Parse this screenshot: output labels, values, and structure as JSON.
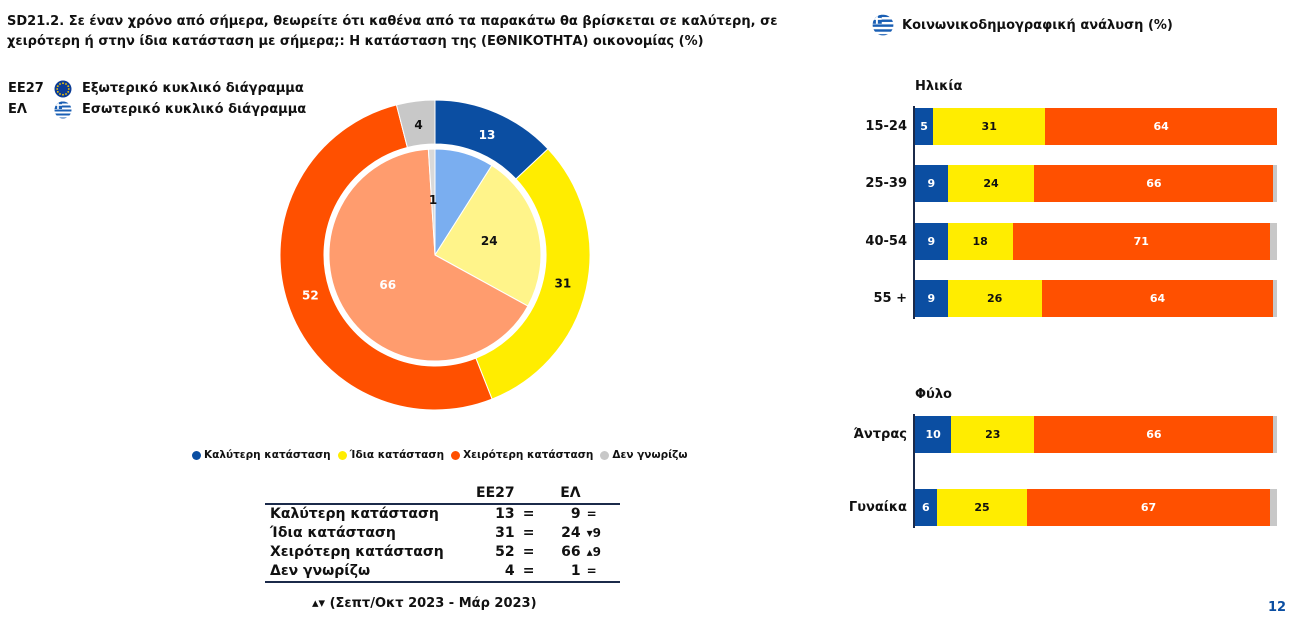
{
  "title": "SD21.2. Σε έναν χρόνο από σήμερα, θεωρείτε ότι καθένα από τα παρακάτω θα βρίσκεται σε καλύτερη, σε χειρότερη ή στην ίδια κατάσταση με σήμερα;: Η κατάσταση της (ΕΘΝΙΚΟΤΗΤΑ) οικονομίας (%)",
  "legend_top": [
    {
      "code": "EE27",
      "label": "Εξωτερικό κυκλικό διάγραμμα",
      "icon": "eu-flag-icon"
    },
    {
      "code": "ΕΛ",
      "label": "Εσωτερικό κυκλικό διάγραμμα",
      "icon": "greece-flag-icon"
    }
  ],
  "right_title": "Κοινωνικοδημογραφική ανάλυση (%)",
  "colors": {
    "better": "#0b4ea2",
    "same": "#ffed00",
    "worse": "#ff5000",
    "dk": "#c8c8c8",
    "better_inner": "#7aaef0",
    "same_inner": "#fff48a",
    "worse_inner": "#ff9c6e",
    "dk_inner": "#d9d9d9"
  },
  "chart_data": [
    {
      "type": "pie",
      "variant": "double-donut",
      "categories": [
        "Καλύτερη κατάσταση",
        "Ίδια κατάσταση",
        "Χειρότερη κατάσταση",
        "Δεν γνωρίζω"
      ],
      "series": [
        {
          "name": "EE27",
          "ring": "outer",
          "values": [
            13,
            31,
            52,
            4
          ]
        },
        {
          "name": "ΕΛ",
          "ring": "inner",
          "values": [
            9,
            24,
            66,
            1
          ]
        }
      ],
      "legend": "bottom"
    },
    {
      "type": "bar",
      "orientation": "horizontal",
      "stacked": true,
      "groups": [
        {
          "label": "Ηλικία",
          "categories": [
            "15-24",
            "25-39",
            "40-54",
            "55 +"
          ],
          "values": [
            [
              5,
              31,
              64,
              0
            ],
            [
              9,
              24,
              66,
              1
            ],
            [
              9,
              18,
              71,
              2
            ],
            [
              9,
              26,
              64,
              1
            ]
          ]
        },
        {
          "label": "Φύλο",
          "categories": [
            "Άντρας",
            "Γυναίκα"
          ],
          "values": [
            [
              10,
              23,
              66,
              1
            ],
            [
              6,
              25,
              67,
              2
            ]
          ]
        }
      ],
      "series_order": [
        "Καλύτερη κατάσταση",
        "Ίδια κατάσταση",
        "Χειρότερη κατάσταση",
        "Δεν γνωρίζω"
      ]
    }
  ],
  "table": {
    "headers": [
      "EE27",
      "ΕΛ"
    ],
    "rows": [
      {
        "label": "Καλύτερη κατάσταση",
        "eu": "13",
        "eq": "=",
        "el": "9",
        "change": "="
      },
      {
        "label": "Ίδια κατάσταση",
        "eu": "31",
        "eq": "=",
        "el": "24",
        "change": "▾9"
      },
      {
        "label": "Χειρότερη κατάσταση",
        "eu": "52",
        "eq": "=",
        "el": "66",
        "change": "▴9"
      },
      {
        "label": "Δεν γνωρίζω",
        "eu": "4",
        "eq": "=",
        "el": "1",
        "change": "="
      }
    ]
  },
  "footnote": "▴▾ (Σεπτ/Οκτ 2023 - Μάρ 2023)",
  "page_number": "12"
}
